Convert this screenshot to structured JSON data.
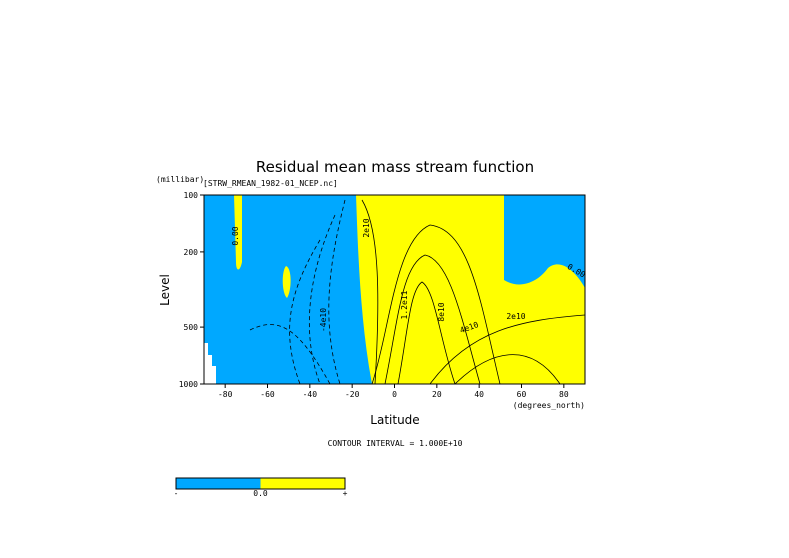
{
  "chart_data": {
    "type": "contour",
    "title": "Residual mean mass stream function",
    "subtitle": "[STRW_RMEAN_1982-01_NCEP.nc]",
    "x_label": "Latitude",
    "x_unit": "(degrees_north)",
    "y_label": "Level",
    "y_unit": "(millibar)",
    "xlim": [
      -90,
      90
    ],
    "xticks": [
      -80,
      -60,
      -40,
      -20,
      0,
      20,
      40,
      60,
      80
    ],
    "ylim": [
      100,
      1000
    ],
    "yticks": [
      100,
      200,
      500,
      1000
    ],
    "y_log": true,
    "y_reversed": true,
    "contour_labels": [
      "0.00",
      "-4e10",
      "2e10",
      "1.2e11",
      "8e10",
      "4e10",
      "2e10",
      "0.00"
    ],
    "contour_interval": "CONTOUR INTERVAL = 1.000E+10",
    "colorbar": {
      "colors": [
        "#00a8ff",
        "#ffff00"
      ],
      "labels": [
        "-",
        "0.0",
        "+"
      ]
    }
  }
}
